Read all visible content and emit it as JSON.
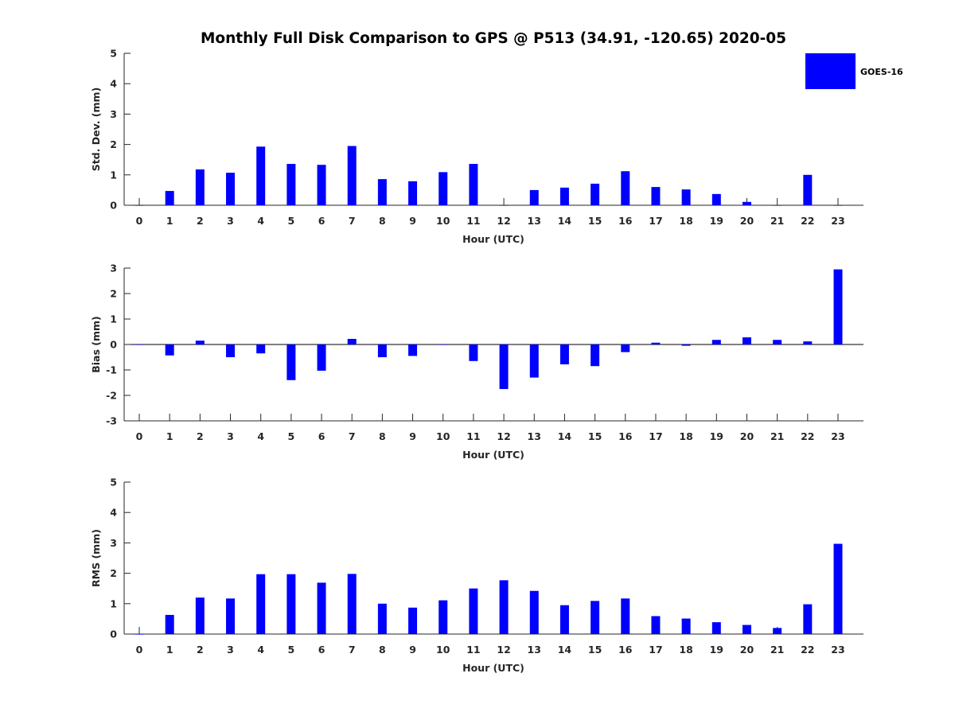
{
  "figure": {
    "title": "Monthly Full Disk Comparison to GPS @ P513 (34.91, -120.65) 2020-05"
  },
  "legend": {
    "label": "GOES-16",
    "color": "#0000ff",
    "placement": "top-right"
  },
  "chart_data": [
    {
      "type": "bar",
      "name": "std-dev",
      "xlabel": "Hour (UTC)",
      "ylabel": "Std. Dev. (mm)",
      "ylim": [
        0,
        5
      ],
      "yticks": [
        0,
        1,
        2,
        3,
        4,
        5
      ],
      "categories": [
        "0",
        "1",
        "2",
        "3",
        "4",
        "5",
        "6",
        "7",
        "8",
        "9",
        "10",
        "11",
        "12",
        "13",
        "14",
        "15",
        "16",
        "17",
        "18",
        "19",
        "20",
        "21",
        "22",
        "23"
      ],
      "series": [
        {
          "name": "GOES-16",
          "values": [
            0,
            0.47,
            1.18,
            1.07,
            1.93,
            1.36,
            1.33,
            1.95,
            0.86,
            0.79,
            1.09,
            1.36,
            0,
            0.5,
            0.58,
            0.71,
            1.12,
            0.6,
            0.52,
            0.37,
            0.11,
            0,
            1.0,
            0
          ]
        }
      ]
    },
    {
      "type": "bar",
      "name": "bias",
      "xlabel": "Hour (UTC)",
      "ylabel": "Bias (mm)",
      "ylim": [
        -3,
        3
      ],
      "yticks": [
        -3,
        -2,
        -1,
        0,
        1,
        2,
        3
      ],
      "categories": [
        "0",
        "1",
        "2",
        "3",
        "4",
        "5",
        "6",
        "7",
        "8",
        "9",
        "10",
        "11",
        "12",
        "13",
        "14",
        "15",
        "16",
        "17",
        "18",
        "19",
        "20",
        "21",
        "22",
        "23"
      ],
      "series": [
        {
          "name": "GOES-16",
          "values": [
            0,
            -0.43,
            0.15,
            -0.5,
            -0.35,
            -1.4,
            -1.03,
            0.22,
            -0.5,
            -0.45,
            0,
            -0.65,
            -1.75,
            -1.3,
            -0.78,
            -0.85,
            -0.3,
            0.07,
            -0.05,
            0.18,
            0.28,
            0.18,
            0.12,
            2.95
          ]
        }
      ]
    },
    {
      "type": "bar",
      "name": "rms",
      "xlabel": "Hour (UTC)",
      "ylabel": "RMS (mm)",
      "ylim": [
        0,
        5
      ],
      "yticks": [
        0,
        1,
        2,
        3,
        4,
        5
      ],
      "categories": [
        "0",
        "1",
        "2",
        "3",
        "4",
        "5",
        "6",
        "7",
        "8",
        "9",
        "10",
        "11",
        "12",
        "13",
        "14",
        "15",
        "16",
        "17",
        "18",
        "19",
        "20",
        "21",
        "22",
        "23"
      ],
      "series": [
        {
          "name": "GOES-16",
          "values": [
            0,
            0.63,
            1.2,
            1.17,
            1.97,
            1.97,
            1.69,
            1.98,
            1.0,
            0.87,
            1.11,
            1.5,
            1.77,
            1.42,
            0.95,
            1.09,
            1.17,
            0.59,
            0.51,
            0.39,
            0.3,
            0.2,
            0.98,
            2.97
          ]
        }
      ]
    }
  ]
}
